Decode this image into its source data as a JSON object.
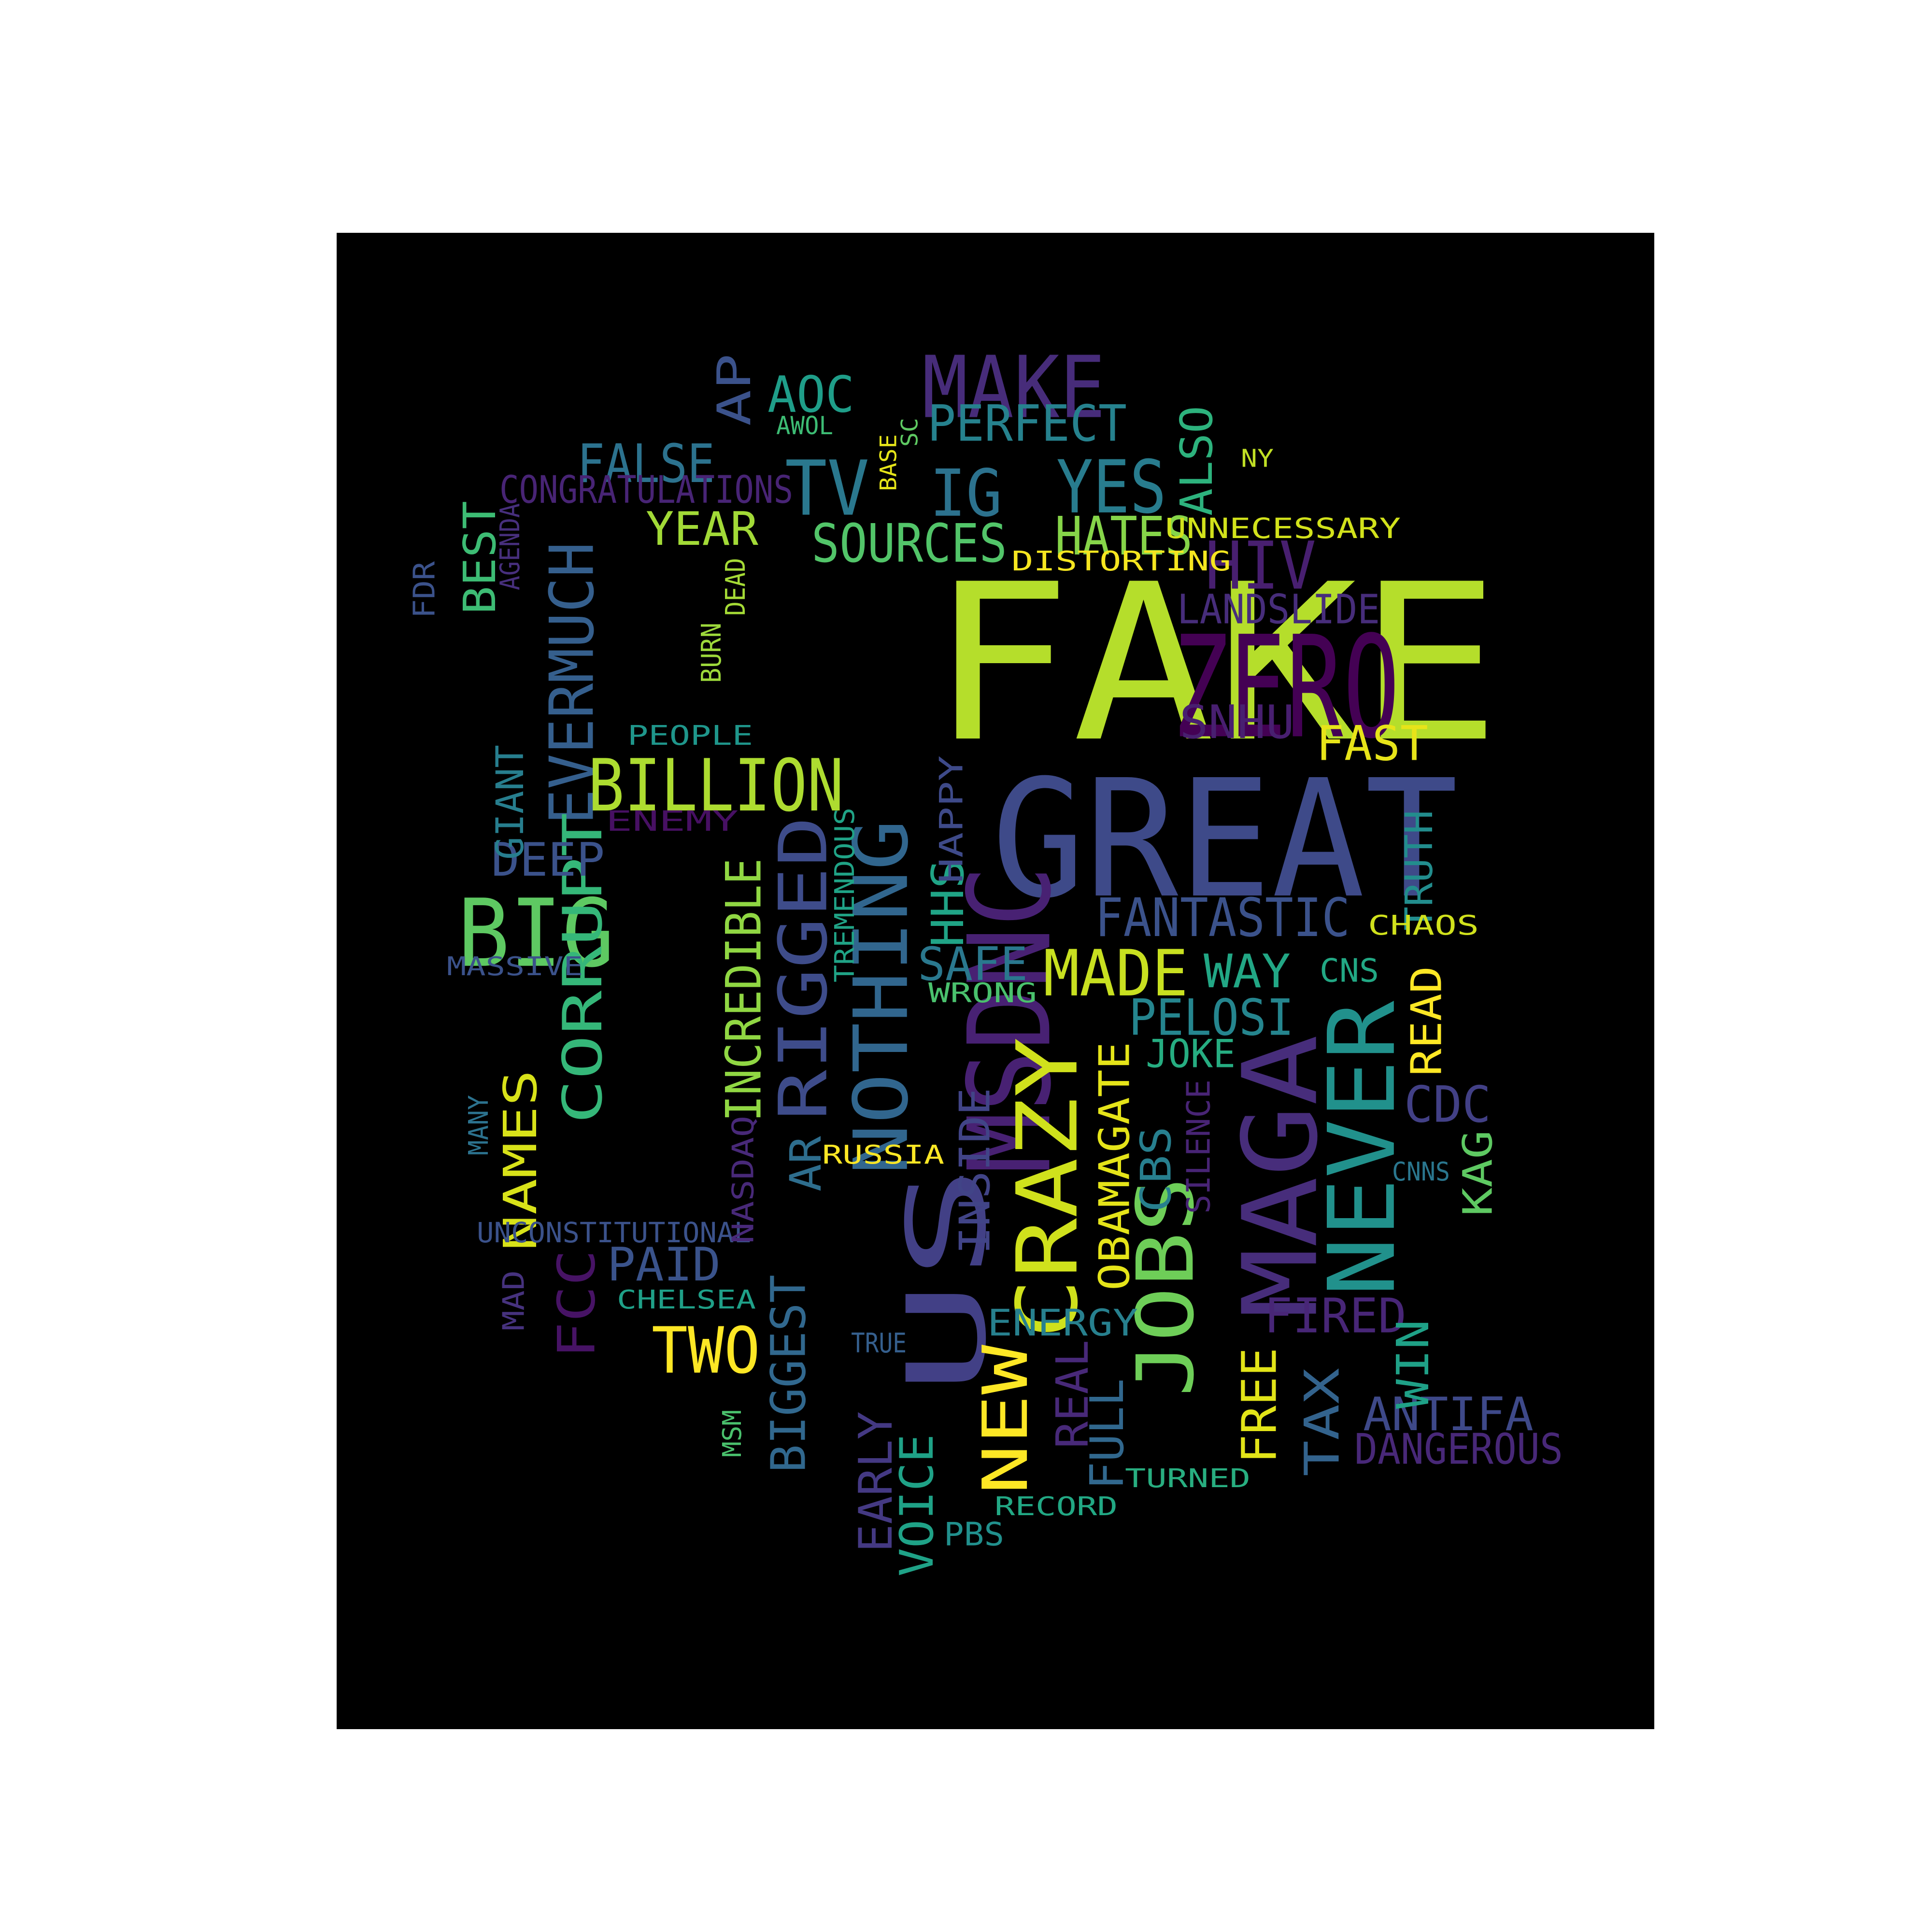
{
  "words": [
    {
      "text": "FAKE",
      "color": "#b5de2b"
    },
    {
      "text": "GREAT",
      "color": "#3e4a89"
    },
    {
      "text": "US",
      "color": "#424086"
    },
    {
      "text": "MSDNC",
      "color": "#482173"
    },
    {
      "text": "MAGA",
      "color": "#472d7b"
    },
    {
      "text": "NEVER",
      "color": "#21918c"
    },
    {
      "text": "CRAZY",
      "color": "#d0e11c"
    },
    {
      "text": "ZERO",
      "color": "#440154"
    },
    {
      "text": "NOTHING",
      "color": "#31668e"
    },
    {
      "text": "RIGGED",
      "color": "#3e4c8a"
    },
    {
      "text": "JOBS",
      "color": "#6ece58"
    },
    {
      "text": "BIG",
      "color": "#5ec962"
    },
    {
      "text": "MAKE",
      "color": "#472c7a"
    },
    {
      "text": "EVERMUCH",
      "color": "#355f8d"
    },
    {
      "text": "CORRUPT",
      "color": "#35b779"
    },
    {
      "text": "BILLION",
      "color": "#addc30"
    },
    {
      "text": "NEW",
      "color": "#fde725"
    },
    {
      "text": "TV",
      "color": "#2a788e"
    },
    {
      "text": "YES",
      "color": "#287c8e"
    },
    {
      "text": "IG",
      "color": "#2c728e"
    },
    {
      "text": "INCREDIBLE",
      "color": "#90d743"
    },
    {
      "text": "TWO",
      "color": "#fde725"
    },
    {
      "text": "MADE",
      "color": "#c8e020"
    },
    {
      "text": "HIV",
      "color": "#481f70"
    },
    {
      "text": "FCC",
      "color": "#471365"
    },
    {
      "text": "TAX",
      "color": "#33638d"
    },
    {
      "text": "AP",
      "color": "#3b528b"
    },
    {
      "text": "HATES",
      "color": "#86d549"
    },
    {
      "text": "SOURCES",
      "color": "#52c569"
    },
    {
      "text": "FALSE",
      "color": "#2c728e"
    },
    {
      "text": "BIGGEST",
      "color": "#31688e"
    },
    {
      "text": "INSIDE",
      "color": "#414487"
    },
    {
      "text": "OBAMAGATE",
      "color": "#e5e419"
    },
    {
      "text": "FANTASTIC",
      "color": "#3b528b"
    },
    {
      "text": "PERFECT",
      "color": "#26828e"
    },
    {
      "text": "NAMES",
      "color": "#d8e219"
    },
    {
      "text": "AOC",
      "color": "#1f9e89"
    },
    {
      "text": "PELOSI",
      "color": "#25858e"
    },
    {
      "text": "DEEP",
      "color": "#3b528b"
    },
    {
      "text": "PAID",
      "color": "#3a538b"
    },
    {
      "text": "FULL",
      "color": "#31688e"
    },
    {
      "text": "FIRED",
      "color": "#482677"
    },
    {
      "text": "ANTIFA",
      "color": "#3e4989"
    },
    {
      "text": "FREE",
      "color": "#e2e418"
    },
    {
      "text": "FAST",
      "color": "#e7e419"
    },
    {
      "text": "VOICE",
      "color": "#1fa287"
    },
    {
      "text": "YEAR",
      "color": "#a2da37"
    },
    {
      "text": "WAY",
      "color": "#22a785"
    },
    {
      "text": "SNHU",
      "color": "#481f70"
    },
    {
      "text": "SAFE",
      "color": "#2a788e"
    },
    {
      "text": "EARLY",
      "color": "#443983"
    },
    {
      "text": "HHS",
      "color": "#20a486"
    },
    {
      "text": "WIN",
      "color": "#1fa187"
    },
    {
      "text": "BEST",
      "color": "#3dbc74"
    },
    {
      "text": "ALSO",
      "color": "#2db27d"
    },
    {
      "text": "REAL",
      "color": "#482979"
    },
    {
      "text": "AR",
      "color": "#2e6e8e"
    },
    {
      "text": "LANDSLIDE",
      "color": "#472d7b"
    },
    {
      "text": "READ",
      "color": "#fde725"
    },
    {
      "text": "CDC",
      "color": "#424086"
    },
    {
      "text": "CBS",
      "color": "#277f8e"
    },
    {
      "text": "KAG",
      "color": "#5ec962"
    },
    {
      "text": "DANGEROUS",
      "color": "#482878"
    },
    {
      "text": "JOKE",
      "color": "#26ad81"
    },
    {
      "text": "ENERGY",
      "color": "#27808e"
    },
    {
      "text": "CONGRATULATIONS",
      "color": "#482475"
    },
    {
      "text": "GIANT",
      "color": "#277e8e"
    },
    {
      "text": "TRUTH",
      "color": "#228d8d"
    },
    {
      "text": "PBS",
      "color": "#21908d"
    },
    {
      "text": "CNS",
      "color": "#22a884"
    },
    {
      "text": "UNNECESSARY",
      "color": "#d2e21b"
    },
    {
      "text": "DISTORTING",
      "color": "#f6e620"
    },
    {
      "text": "UNCONSTITUTIONAL",
      "color": "#3b528b"
    },
    {
      "text": "TREMENDOUS",
      "color": "#20a386"
    },
    {
      "text": "HAPPY",
      "color": "#3e4a89"
    },
    {
      "text": "SILENCE",
      "color": "#482475"
    },
    {
      "text": "NASDAQ",
      "color": "#482979"
    },
    {
      "text": "ENEMY",
      "color": "#471063"
    },
    {
      "text": "CHAOS",
      "color": "#d0e11c"
    },
    {
      "text": "PEOPLE",
      "color": "#1f968b"
    },
    {
      "text": "WRONG",
      "color": "#4ac16d"
    },
    {
      "text": "MASSIVE",
      "color": "#3b528b"
    },
    {
      "text": "TRUE",
      "color": "#355f8d"
    },
    {
      "text": "CHELSEA",
      "color": "#1fa088"
    },
    {
      "text": "RECORD",
      "color": "#22a884"
    },
    {
      "text": "TURNED",
      "color": "#28ae80"
    },
    {
      "text": "RUSSIA",
      "color": "#fde725"
    },
    {
      "text": "CNNS",
      "color": "#2a768e"
    },
    {
      "text": "AWOL",
      "color": "#3dbc74"
    },
    {
      "text": "BASE",
      "color": "#e5e419"
    },
    {
      "text": "SC",
      "color": "#5ec962"
    },
    {
      "text": "NY",
      "color": "#c0df25"
    },
    {
      "text": "FDR",
      "color": "#3b528b"
    },
    {
      "text": "AGENDA",
      "color": "#472f7d"
    },
    {
      "text": "DEAD",
      "color": "#a5db36"
    },
    {
      "text": "BURN",
      "color": "#9dd93b"
    },
    {
      "text": "MANY",
      "color": "#2c728e"
    },
    {
      "text": "MAD",
      "color": "#46327e"
    },
    {
      "text": "MSM",
      "color": "#4ac16d"
    }
  ]
}
